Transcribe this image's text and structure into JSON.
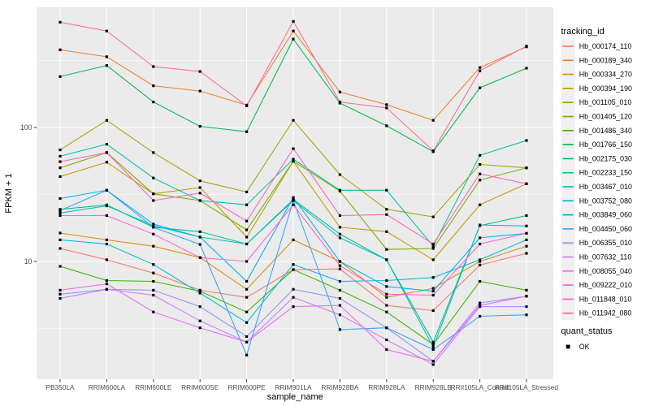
{
  "chart_data": {
    "type": "line",
    "title": "",
    "xlabel": "sample_name",
    "ylabel": "FPKM + 1",
    "y_scale": "log10",
    "y_tick_labels": [
      "100",
      "10"
    ],
    "y_tick_values": [
      100,
      10
    ],
    "y_minor_values": [
      3.1623,
      31.623,
      316.23
    ],
    "ylim": [
      1.3,
      780
    ],
    "grid": "on",
    "legend_position": "right",
    "legend_title": "tracking_id",
    "legend2_title": "quant_status",
    "legend2_items": [
      "OK"
    ],
    "categories": [
      "PB350LA",
      "RRIM600LA",
      "RRIM600LE",
      "RRIM600SE",
      "RRIM600PE",
      "RRIM901LA",
      "RRIM928BA",
      "RRIM928LA",
      "RRIM928LB",
      "RRII105LA_Control",
      "RRII105LA_Stressed"
    ],
    "point_color": "#000000",
    "panel_background": "#EBEBEB",
    "gridline_color": "#FFFFFF",
    "axis_text_color": "#4D4D4D",
    "series": [
      {
        "name": "Hb_000174_110",
        "color": "#F8766D",
        "values": [
          12.5,
          10.3,
          8.2,
          6.1,
          5.4,
          8.7,
          8.8,
          4.7,
          4.3,
          9.4,
          11.5
        ]
      },
      {
        "name": "Hb_000189_340",
        "color": "#EA8331",
        "values": [
          380,
          337,
          205,
          187,
          147,
          525,
          184,
          148,
          113,
          280,
          400
        ]
      },
      {
        "name": "Hb_000334_270",
        "color": "#D89000",
        "values": [
          16.3,
          14.5,
          13,
          10.7,
          6.2,
          14.5,
          10,
          5.4,
          6.3,
          10,
          13
        ]
      },
      {
        "name": "Hb_000394_190",
        "color": "#C09B00",
        "values": [
          43,
          55,
          32,
          35.6,
          15.2,
          56,
          18,
          16.7,
          10.3,
          26.5,
          38
        ]
      },
      {
        "name": "Hb_001105_010",
        "color": "#A3A500",
        "values": [
          68,
          113,
          65,
          40,
          33,
          113,
          44.5,
          24.5,
          21.5,
          53,
          50
        ]
      },
      {
        "name": "Hb_001405_120",
        "color": "#7CAE00",
        "values": [
          50,
          65,
          32,
          28.5,
          17.2,
          56,
          33.5,
          12.3,
          12.5,
          40.5,
          50
        ]
      },
      {
        "name": "Hb_001486_340",
        "color": "#39B600",
        "values": [
          9.2,
          7.2,
          7.1,
          6,
          4.2,
          8.7,
          6.1,
          4.2,
          2.4,
          7.1,
          6.1
        ]
      },
      {
        "name": "Hb_001766_150",
        "color": "#00BB4E",
        "values": [
          240,
          290,
          155,
          102,
          93,
          457,
          152,
          103,
          66,
          198,
          277
        ]
      },
      {
        "name": "Hb_002175_030",
        "color": "#00BF7D",
        "values": [
          24.5,
          26.4,
          18,
          16.7,
          13.5,
          29,
          16,
          10.3,
          2.5,
          18.5,
          22
        ]
      },
      {
        "name": "Hb_002233_150",
        "color": "#00C1A3",
        "values": [
          61,
          75,
          42,
          28.5,
          26.5,
          58,
          34,
          34,
          13,
          62,
          80
        ]
      },
      {
        "name": "Hb_003467_010",
        "color": "#00BFC4",
        "values": [
          23,
          26,
          18.5,
          15.2,
          13.5,
          28.5,
          15,
          10.3,
          2.3,
          18.7,
          18.4
        ]
      },
      {
        "name": "Hb_003752_080",
        "color": "#00BAE0",
        "values": [
          14.5,
          13.5,
          9.5,
          5.8,
          3.5,
          9.5,
          7.1,
          7.2,
          7.6,
          10.3,
          14.5
        ]
      },
      {
        "name": "Hb_003849_060",
        "color": "#00B0F6",
        "values": [
          29.5,
          34,
          19,
          15.2,
          7.1,
          30,
          10,
          6.5,
          6,
          15,
          16.2
        ]
      },
      {
        "name": "Hb_004450_060",
        "color": "#35A2FF",
        "values": [
          24,
          34,
          18,
          13.4,
          2,
          28.5,
          3.1,
          3.2,
          2.2,
          3.9,
          4
        ]
      },
      {
        "name": "Hb_006355_010",
        "color": "#9590FF",
        "values": [
          5.7,
          6.2,
          6.1,
          4.6,
          2.75,
          6.2,
          5.3,
          3.2,
          1.8,
          4.9,
          5.5
        ]
      },
      {
        "name": "Hb_007632_110",
        "color": "#C77CFF",
        "values": [
          5.3,
          6.2,
          5.6,
          3.6,
          2.5,
          5.4,
          4,
          2.6,
          1.7,
          4.6,
          4.6
        ]
      },
      {
        "name": "Hb_008055_040",
        "color": "#E76BF3",
        "values": [
          6.1,
          6.8,
          4.2,
          3.2,
          2.5,
          4.6,
          4.7,
          2.2,
          1.8,
          4.7,
          5.5
        ]
      },
      {
        "name": "Hb_009222_010",
        "color": "#FA62DB",
        "values": [
          22,
          22,
          16,
          10.7,
          10,
          26.5,
          9.3,
          5.7,
          5.6,
          13.5,
          16.2
        ]
      },
      {
        "name": "Hb_011848_010",
        "color": "#FF62BC",
        "values": [
          55.6,
          65,
          28.5,
          32.4,
          20,
          69.5,
          22,
          22.4,
          13.5,
          45,
          38
        ]
      },
      {
        "name": "Hb_011942_080",
        "color": "#FF6A98",
        "values": [
          610,
          525,
          285,
          262,
          145,
          620,
          155,
          140,
          67,
          265,
          405
        ]
      }
    ]
  }
}
